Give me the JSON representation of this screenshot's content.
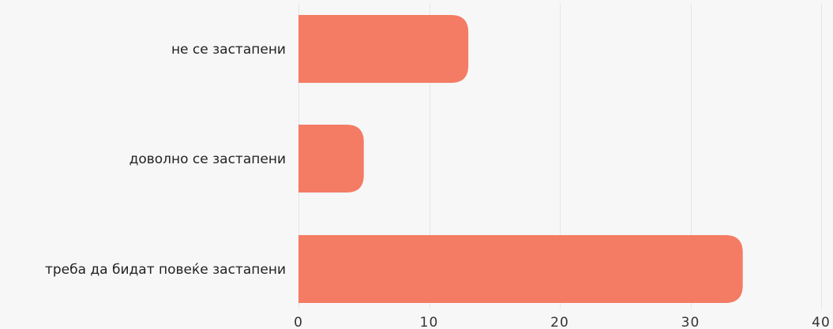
{
  "chart_data": {
    "type": "bar",
    "orientation": "horizontal",
    "categories": [
      "не се застапени",
      "доволно се застапени",
      "треба да бидат повеќе застапени"
    ],
    "values": [
      13,
      5,
      34
    ],
    "xlim": [
      0,
      40
    ],
    "xticks": [
      "0",
      "10",
      "20",
      "30",
      "40"
    ],
    "grid": true,
    "legend": "none",
    "bar_color": "#f47c64",
    "grid_color": "#e6e6e6",
    "background": "#f7f7f7"
  }
}
